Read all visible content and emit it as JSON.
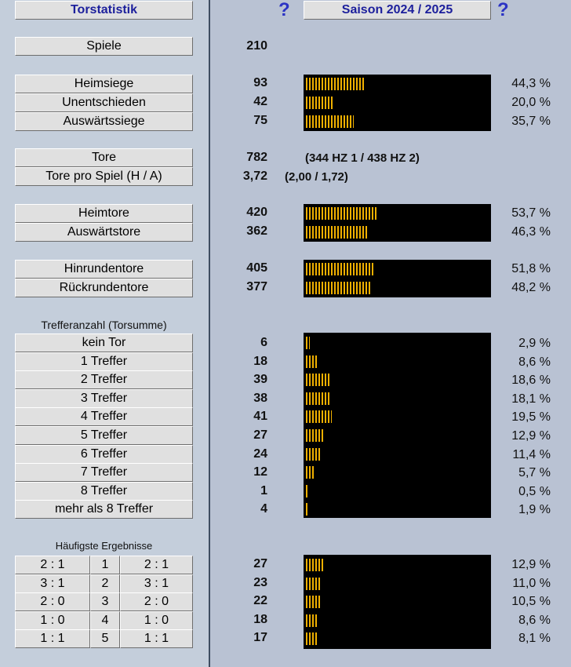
{
  "header": {
    "title": "Torstatistik",
    "season": "Saison 2024 / 2025",
    "help_symbol": "?"
  },
  "summary": {
    "label": "Spiele",
    "value": "210"
  },
  "results": [
    {
      "label": "Heimsiege",
      "value": "93",
      "percent": "44,3 %",
      "fraction": 0.443
    },
    {
      "label": "Unentschieden",
      "value": "42",
      "percent": "20,0 %",
      "fraction": 0.2
    },
    {
      "label": "Auswärtssiege",
      "value": "75",
      "percent": "35,7 %",
      "fraction": 0.357
    }
  ],
  "goals": {
    "label": "Tore",
    "value": "782",
    "detail": "(344 HZ 1 / 438 HZ 2)",
    "per_game_label": "Tore pro Spiel (H / A)",
    "per_game_value": "3,72",
    "per_game_detail": "(2,00 / 1,72)"
  },
  "home_away_goals": [
    {
      "label": "Heimtore",
      "value": "420",
      "percent": "53,7 %",
      "fraction": 0.537
    },
    {
      "label": "Auswärtstore",
      "value": "362",
      "percent": "46,3 %",
      "fraction": 0.463
    }
  ],
  "round_goals": [
    {
      "label": "Hinrundentore",
      "value": "405",
      "percent": "51,8 %",
      "fraction": 0.518
    },
    {
      "label": "Rückrundentore",
      "value": "377",
      "percent": "48,2 %",
      "fraction": 0.482
    }
  ],
  "goal_count_caption": "Trefferanzahl (Torsumme)",
  "goal_counts": [
    {
      "label": "kein Tor",
      "value": "6",
      "percent": "2,9 %",
      "fraction": 0.029
    },
    {
      "label": "1 Treffer",
      "value": "18",
      "percent": "8,6 %",
      "fraction": 0.086
    },
    {
      "label": "2 Treffer",
      "value": "39",
      "percent": "18,6 %",
      "fraction": 0.186
    },
    {
      "label": "3 Treffer",
      "value": "38",
      "percent": "18,1 %",
      "fraction": 0.181
    },
    {
      "label": "4 Treffer",
      "value": "41",
      "percent": "19,5 %",
      "fraction": 0.195
    },
    {
      "label": "5 Treffer",
      "value": "27",
      "percent": "12,9 %",
      "fraction": 0.129
    },
    {
      "label": "6 Treffer",
      "value": "24",
      "percent": "11,4 %",
      "fraction": 0.114
    },
    {
      "label": "7 Treffer",
      "value": "12",
      "percent": "5,7 %",
      "fraction": 0.057
    },
    {
      "label": "8 Treffer",
      "value": "1",
      "percent": "0,5 %",
      "fraction": 0.005
    },
    {
      "label": "mehr als 8 Treffer",
      "value": "4",
      "percent": "1,9 %",
      "fraction": 0.019
    }
  ],
  "top_results_caption": "Häufigste Ergebnisse",
  "top_results": [
    {
      "result": "2 : 1",
      "rank": "1",
      "result2": "2 : 1",
      "value": "27",
      "percent": "12,9 %",
      "fraction": 0.129
    },
    {
      "result": "3 : 1",
      "rank": "2",
      "result2": "3 : 1",
      "value": "23",
      "percent": "11,0 %",
      "fraction": 0.11
    },
    {
      "result": "2 : 0",
      "rank": "3",
      "result2": "2 : 0",
      "value": "22",
      "percent": "10,5 %",
      "fraction": 0.105
    },
    {
      "result": "1 : 0",
      "rank": "4",
      "result2": "1 : 0",
      "value": "18",
      "percent": "8,6 %",
      "fraction": 0.086
    },
    {
      "result": "1 : 1",
      "rank": "5",
      "result2": "1 : 1",
      "value": "17",
      "percent": "8,1 %",
      "fraction": 0.081
    }
  ],
  "colors": {
    "left_panel": "#c4cedb",
    "right_panel": "#b9c2d3",
    "divider": "#3e4d61",
    "bar_background": "#000000",
    "bar_fill": "#f0b000",
    "header_text": "#1c1f9c",
    "help_icon": "#2b33c4"
  }
}
